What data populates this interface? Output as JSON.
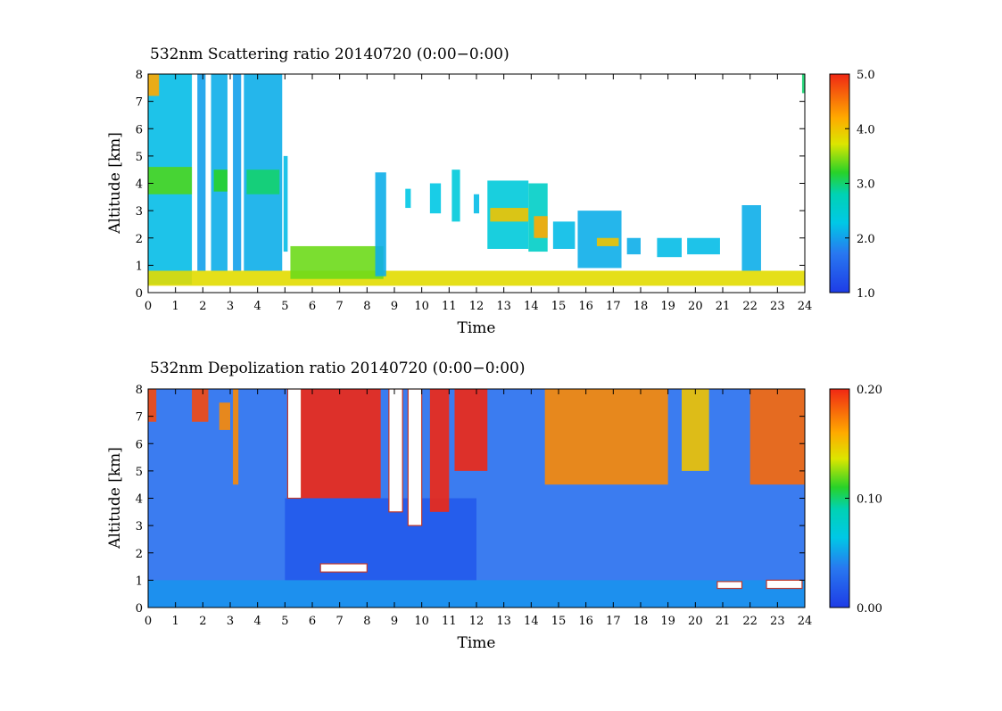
{
  "chart_data": [
    {
      "type": "heatmap",
      "title": "532nm Scattering ratio  20140720 (0:00−0:00)",
      "xlabel": "Time",
      "ylabel": "Altitude [km]",
      "xlim": [
        0,
        24
      ],
      "ylim": [
        0,
        8
      ],
      "x_ticks": [
        "0",
        "1",
        "2",
        "3",
        "4",
        "5",
        "6",
        "7",
        "8",
        "9",
        "10",
        "11",
        "12",
        "13",
        "14",
        "15",
        "16",
        "17",
        "18",
        "19",
        "20",
        "21",
        "22",
        "23",
        "24"
      ],
      "y_ticks": [
        "0",
        "1",
        "2",
        "3",
        "4",
        "5",
        "6",
        "7",
        "8"
      ],
      "colorbar": {
        "min": 1.0,
        "max": 5.0,
        "ticks": [
          "1.0",
          "2.0",
          "3.0",
          "4.0",
          "5.0"
        ]
      },
      "grid": false,
      "features": [
        {
          "t0": 0.0,
          "t1": 1.6,
          "a0": 0.3,
          "a1": 8.0,
          "v": 2.2
        },
        {
          "t0": 0.0,
          "t1": 1.6,
          "a0": 3.6,
          "a1": 4.6,
          "v": 3.3
        },
        {
          "t0": 0.0,
          "t1": 0.4,
          "a0": 7.2,
          "a1": 8.0,
          "v": 4.2
        },
        {
          "t0": 1.8,
          "t1": 2.1,
          "a0": 0.8,
          "a1": 8.0,
          "v": 2.0
        },
        {
          "t0": 2.3,
          "t1": 2.9,
          "a0": 0.8,
          "a1": 8.0,
          "v": 2.1
        },
        {
          "t0": 2.4,
          "t1": 2.9,
          "a0": 3.7,
          "a1": 4.5,
          "v": 3.2
        },
        {
          "t0": 3.1,
          "t1": 3.4,
          "a0": 0.8,
          "a1": 8.0,
          "v": 2.0
        },
        {
          "t0": 3.5,
          "t1": 4.9,
          "a0": 0.8,
          "a1": 8.0,
          "v": 2.1
        },
        {
          "t0": 3.6,
          "t1": 4.8,
          "a0": 3.6,
          "a1": 4.5,
          "v": 3.0
        },
        {
          "t0": 4.95,
          "t1": 5.1,
          "a0": 1.5,
          "a1": 5.0,
          "v": 2.2
        },
        {
          "t0": 0.0,
          "t1": 24.0,
          "a0": 0.25,
          "a1": 0.8,
          "v": 3.8
        },
        {
          "t0": 5.2,
          "t1": 8.6,
          "a0": 0.5,
          "a1": 1.7,
          "v": 3.4
        },
        {
          "t0": 8.3,
          "t1": 8.7,
          "a0": 0.6,
          "a1": 4.4,
          "v": 2.1
        },
        {
          "t0": 9.4,
          "t1": 9.6,
          "a0": 3.1,
          "a1": 3.8,
          "v": 2.3
        },
        {
          "t0": 10.3,
          "t1": 10.7,
          "a0": 2.9,
          "a1": 4.0,
          "v": 2.3
        },
        {
          "t0": 11.1,
          "t1": 11.4,
          "a0": 2.6,
          "a1": 4.5,
          "v": 2.4
        },
        {
          "t0": 11.9,
          "t1": 12.1,
          "a0": 2.9,
          "a1": 3.6,
          "v": 2.2
        },
        {
          "t0": 12.4,
          "t1": 13.9,
          "a0": 1.6,
          "a1": 4.1,
          "v": 2.4
        },
        {
          "t0": 12.5,
          "t1": 13.9,
          "a0": 2.6,
          "a1": 3.1,
          "v": 4.0
        },
        {
          "t0": 13.9,
          "t1": 14.6,
          "a0": 1.5,
          "a1": 4.0,
          "v": 2.6
        },
        {
          "t0": 14.1,
          "t1": 14.6,
          "a0": 2.0,
          "a1": 2.8,
          "v": 4.2
        },
        {
          "t0": 14.8,
          "t1": 15.6,
          "a0": 1.6,
          "a1": 2.6,
          "v": 2.2
        },
        {
          "t0": 15.7,
          "t1": 17.3,
          "a0": 0.9,
          "a1": 3.0,
          "v": 2.1
        },
        {
          "t0": 16.4,
          "t1": 17.2,
          "a0": 1.7,
          "a1": 2.0,
          "v": 4.0
        },
        {
          "t0": 17.5,
          "t1": 18.0,
          "a0": 1.4,
          "a1": 2.0,
          "v": 2.1
        },
        {
          "t0": 18.6,
          "t1": 19.5,
          "a0": 1.3,
          "a1": 2.0,
          "v": 2.2
        },
        {
          "t0": 19.7,
          "t1": 20.9,
          "a0": 1.4,
          "a1": 2.0,
          "v": 2.2
        },
        {
          "t0": 21.7,
          "t1": 22.4,
          "a0": 0.8,
          "a1": 3.2,
          "v": 2.1
        },
        {
          "t0": 23.9,
          "t1": 24.0,
          "a0": 7.3,
          "a1": 8.0,
          "v": 3.0
        }
      ]
    },
    {
      "type": "heatmap",
      "title": "532nm Depolization ratio  20140720 (0:00−0:00)",
      "xlabel": "Time",
      "ylabel": "Altitude [km]",
      "xlim": [
        0,
        24
      ],
      "ylim": [
        0,
        8
      ],
      "x_ticks": [
        "0",
        "1",
        "2",
        "3",
        "4",
        "5",
        "6",
        "7",
        "8",
        "9",
        "10",
        "11",
        "12",
        "13",
        "14",
        "15",
        "16",
        "17",
        "18",
        "19",
        "20",
        "21",
        "22",
        "23",
        "24"
      ],
      "y_ticks": [
        "0",
        "1",
        "2",
        "3",
        "4",
        "5",
        "6",
        "7",
        "8"
      ],
      "colorbar": {
        "min": 0.0,
        "max": 0.2,
        "ticks": [
          "0.00",
          "0.10",
          "0.20"
        ]
      },
      "grid": false,
      "features": [
        {
          "t0": 0.0,
          "t1": 24.0,
          "a0": 0.0,
          "a1": 8.0,
          "v": 0.03
        },
        {
          "t0": 0.0,
          "t1": 24.0,
          "a0": 0.0,
          "a1": 1.0,
          "v": 0.045
        },
        {
          "t0": 5.0,
          "t1": 12.0,
          "a0": 1.0,
          "a1": 4.0,
          "v": 0.018
        },
        {
          "t0": 0.0,
          "t1": 0.3,
          "a0": 6.8,
          "a1": 8.0,
          "v": 0.19
        },
        {
          "t0": 1.6,
          "t1": 2.2,
          "a0": 6.8,
          "a1": 8.0,
          "v": 0.19
        },
        {
          "t0": 2.6,
          "t1": 3.0,
          "a0": 6.5,
          "a1": 7.5,
          "v": 0.17
        },
        {
          "t0": 3.1,
          "t1": 3.3,
          "a0": 4.5,
          "a1": 8.0,
          "v": 0.17
        },
        {
          "t0": 5.1,
          "t1": 5.6,
          "a0": 4.0,
          "a1": 8.0,
          "v": 0.25
        },
        {
          "t0": 5.6,
          "t1": 8.5,
          "a0": 4.0,
          "a1": 8.0,
          "v": 0.2
        },
        {
          "t0": 8.8,
          "t1": 9.3,
          "a0": 3.5,
          "a1": 8.0,
          "v": 0.25
        },
        {
          "t0": 9.5,
          "t1": 10.0,
          "a0": 3.0,
          "a1": 8.0,
          "v": 0.25
        },
        {
          "t0": 10.3,
          "t1": 11.0,
          "a0": 3.5,
          "a1": 8.0,
          "v": 0.2
        },
        {
          "t0": 11.2,
          "t1": 12.4,
          "a0": 5.0,
          "a1": 8.0,
          "v": 0.2
        },
        {
          "t0": 14.5,
          "t1": 19.0,
          "a0": 4.5,
          "a1": 8.0,
          "v": 0.17
        },
        {
          "t0": 19.5,
          "t1": 20.5,
          "a0": 5.0,
          "a1": 8.0,
          "v": 0.15
        },
        {
          "t0": 22.0,
          "t1": 24.0,
          "a0": 4.5,
          "a1": 8.0,
          "v": 0.18
        },
        {
          "t0": 6.3,
          "t1": 8.0,
          "a0": 1.3,
          "a1": 1.6,
          "v": 0.25
        },
        {
          "t0": 20.8,
          "t1": 21.7,
          "a0": 0.7,
          "a1": 0.95,
          "v": 0.3
        },
        {
          "t0": 22.6,
          "t1": 23.9,
          "a0": 0.7,
          "a1": 1.0,
          "v": 0.3
        }
      ]
    }
  ]
}
